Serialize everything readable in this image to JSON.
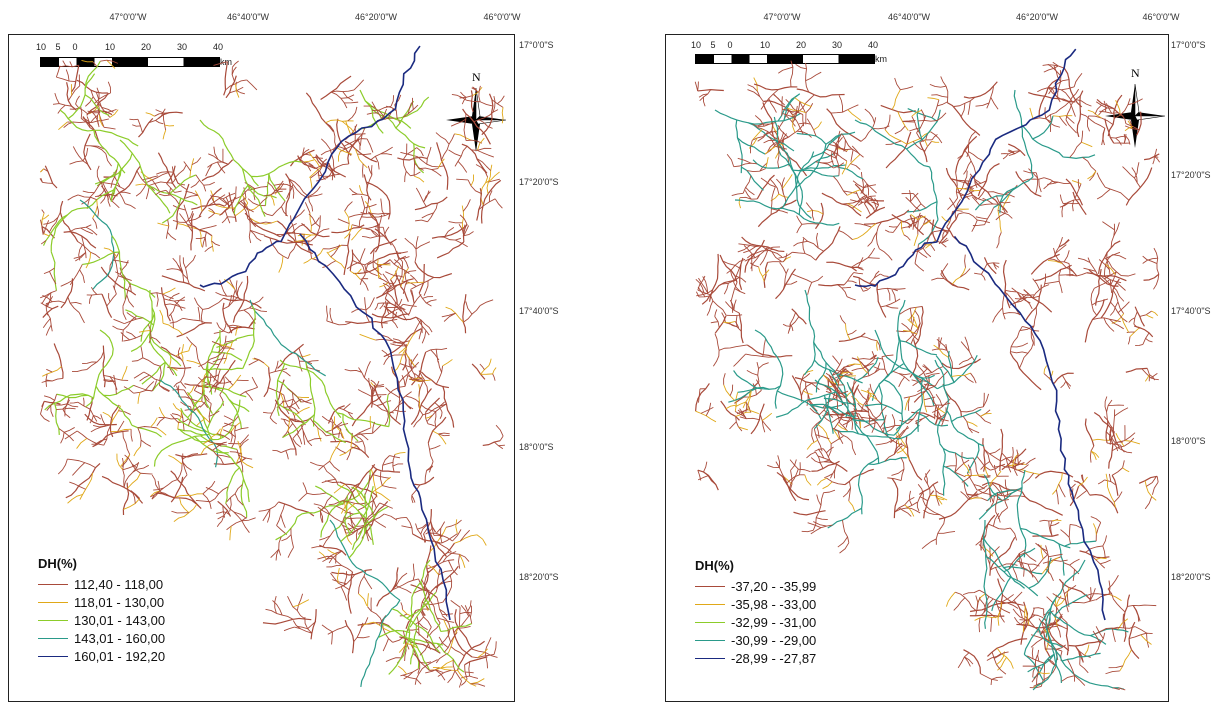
{
  "colors": {
    "c1": "#a84a3a",
    "c2": "#e0a818",
    "c3": "#8ccc2a",
    "c4": "#2a9a8a",
    "c5": "#1a2a80"
  },
  "panels": [
    {
      "lon_labels": [
        "47°0'0\"W",
        "46°40'0\"W",
        "46°20'0\"W",
        "46°0'0\"W"
      ],
      "lat_labels": [
        "17°0'0\"S",
        "17°20'0\"S",
        "17°40'0\"S",
        "18°0'0\"S",
        "18°20'0\"S"
      ],
      "scale_labels": [
        "10",
        "5",
        "0",
        "10",
        "20",
        "30",
        "40"
      ],
      "scale_unit": "km",
      "north_label": "N",
      "legend_title": "DH(%)",
      "legend": [
        "112,40 - 118,00",
        "118,01 - 130,00",
        "130,01 - 143,00",
        "143,01 - 160,00",
        "160,01 - 192,20"
      ]
    },
    {
      "lon_labels": [
        "47°0'0\"W",
        "46°40'0\"W",
        "46°20'0\"W",
        "46°0'0\"W"
      ],
      "lat_labels": [
        "17°0'0\"S",
        "17°20'0\"S",
        "17°40'0\"S",
        "18°0'0\"S",
        "18°20'0\"S"
      ],
      "scale_labels": [
        "10",
        "5",
        "0",
        "10",
        "20",
        "30",
        "40"
      ],
      "scale_unit": "km",
      "north_label": "N",
      "legend_title": "DH(%)",
      "legend": [
        "-37,20 - -35,99",
        "-35,98 - -33,00",
        "-32,99 - -31,00",
        "-30,99 - -29,00",
        "-28,99 - -27,87"
      ]
    }
  ]
}
